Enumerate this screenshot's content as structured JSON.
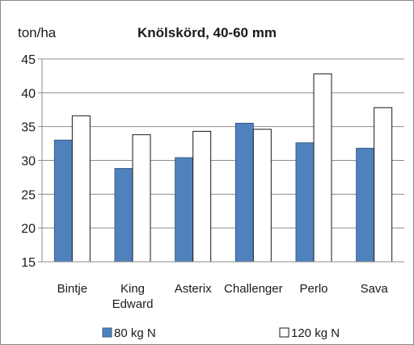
{
  "chart_data": {
    "type": "bar",
    "title": "Knölskörd, 40-60 mm",
    "ylabel": "ton/ha",
    "xlabel": "",
    "ylim": [
      15,
      45
    ],
    "yticks": [
      15,
      20,
      25,
      30,
      35,
      40,
      45
    ],
    "categories": [
      [
        "Bintje"
      ],
      [
        "King",
        "Edward"
      ],
      [
        "Asterix"
      ],
      [
        "Challenger"
      ],
      [
        "Perlo"
      ],
      [
        "Sava"
      ]
    ],
    "series": [
      {
        "name": "80 kg N",
        "color": "#4f81bd",
        "values": [
          33.0,
          28.8,
          30.4,
          35.5,
          32.6,
          31.8
        ]
      },
      {
        "name": "120 kg N",
        "color": "#ffffff",
        "values": [
          36.6,
          33.8,
          34.3,
          34.6,
          42.8,
          37.8
        ]
      }
    ],
    "grid": true,
    "legend": "bottom"
  }
}
